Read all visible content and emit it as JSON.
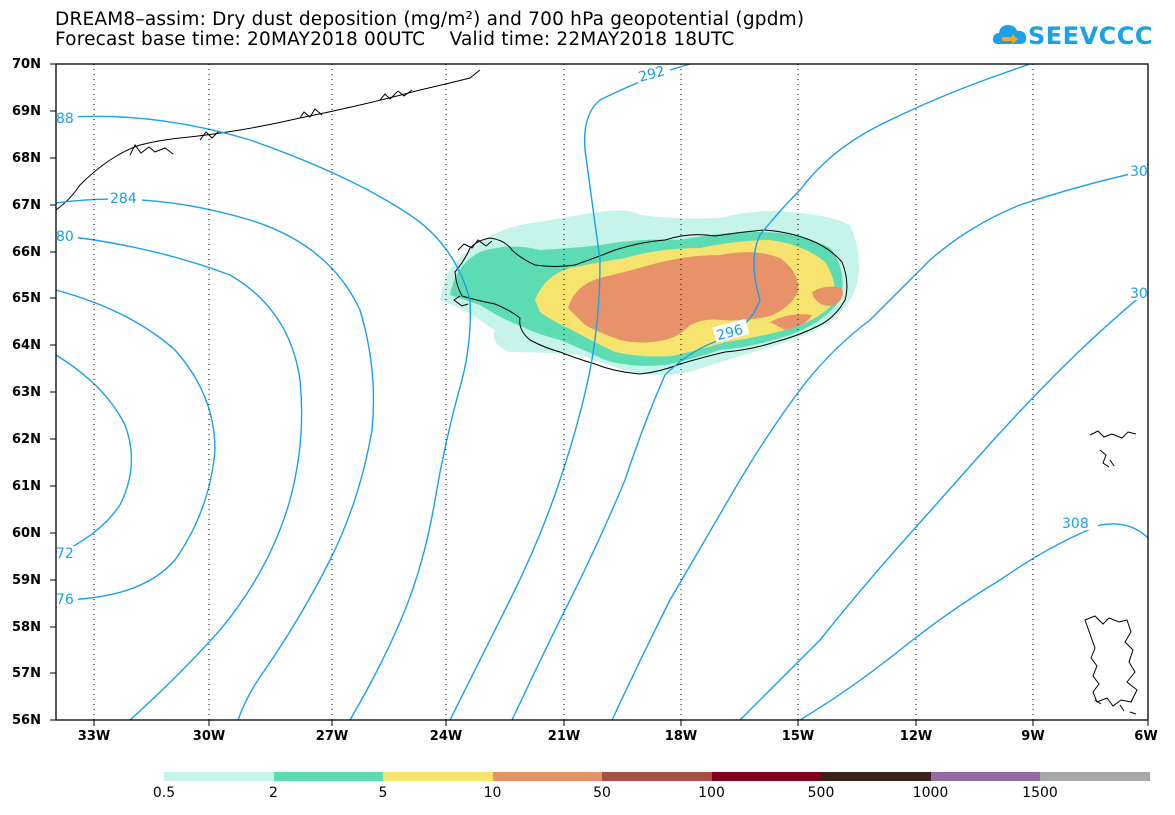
{
  "title_line1": "DREAM8–assim: Dry dust deposition (mg/m²) and 700 hPa geopotential (gpdm)",
  "title_line2": "Forecast base time: 20MAY2018 00UTC    Valid time: 22MAY2018 18UTC",
  "logo_text": "SEEVCCC",
  "logo_icon": "cloud-arrow-icon",
  "lat_labels": [
    "70N",
    "69N",
    "68N",
    "67N",
    "66N",
    "65N",
    "64N",
    "63N",
    "62N",
    "61N",
    "60N",
    "59N",
    "58N",
    "57N",
    "56N"
  ],
  "lon_labels": [
    "33W",
    "30W",
    "27W",
    "24W",
    "21W",
    "18W",
    "15W",
    "12W",
    "9W",
    "6W"
  ],
  "contour_labels": [
    "88",
    "284",
    "80",
    "72",
    "76",
    "292",
    "296",
    "30",
    "30",
    "308"
  ],
  "colorbar": {
    "labels": [
      "0.5",
      "2",
      "5",
      "10",
      "50",
      "100",
      "500",
      "1000",
      "1500"
    ],
    "colors": [
      "#c6f3ea",
      "#5ddcb3",
      "#f7e46e",
      "#e8926a",
      "#a84e47",
      "#80001e",
      "#3a2219",
      "#956aa2",
      "#a8a8a8"
    ]
  },
  "colors": {
    "contour": "#1aa1e8",
    "coast": "#000000",
    "dust_low": "#c6f3ea",
    "dust_2": "#5ddcb3",
    "dust_5": "#f7e46e",
    "dust_10": "#e8926a"
  }
}
